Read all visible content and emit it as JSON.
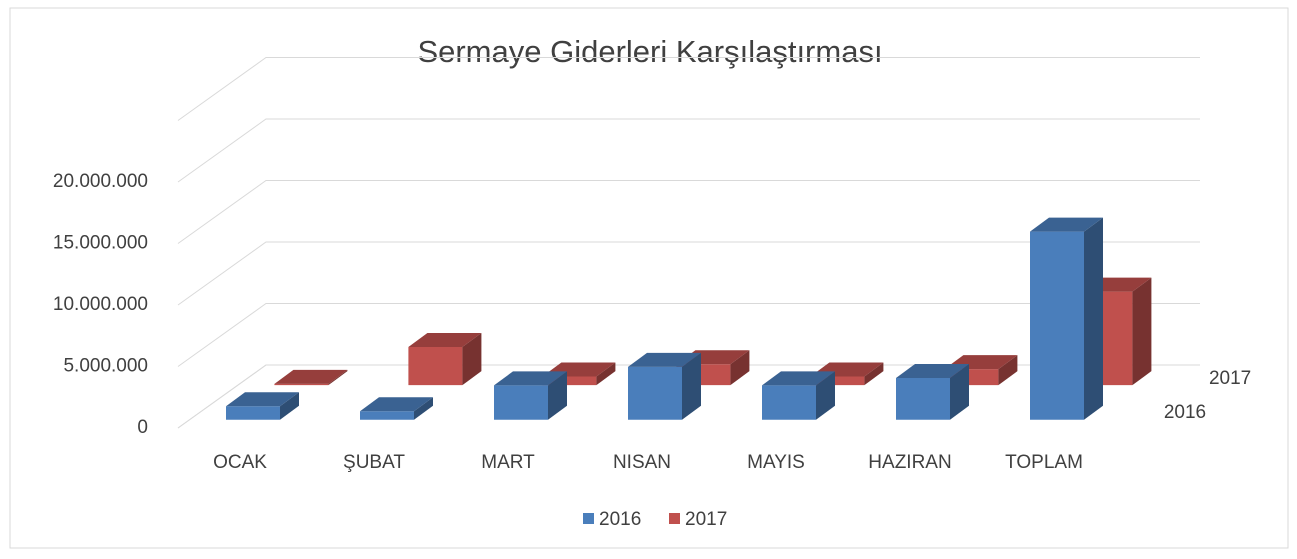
{
  "chart_data": {
    "type": "bar3d",
    "title": "Sermaye Giderleri Karşılaştırması",
    "categories": [
      "OCAK",
      "ŞUBAT",
      "MART",
      "NISAN",
      "MAYIS",
      "HAZIRAN",
      "TOPLAM"
    ],
    "series": [
      {
        "name": "2016",
        "color": "#4a7ebb",
        "values": [
          1100000,
          700000,
          2800000,
          4300000,
          2800000,
          3400000,
          15300000
        ]
      },
      {
        "name": "2017",
        "color": "#c0504d",
        "values": [
          100000,
          3100000,
          700000,
          1700000,
          700000,
          1300000,
          7600000
        ]
      }
    ],
    "ylim": [
      0,
      25000000
    ],
    "yticks": [
      {
        "value": 0,
        "label": "0"
      },
      {
        "value": 5000000,
        "label": "5.000.000"
      },
      {
        "value": 10000000,
        "label": "10.000.000"
      },
      {
        "value": 15000000,
        "label": "15.000.000"
      },
      {
        "value": 20000000,
        "label": "20.000.000"
      }
    ],
    "grid": true,
    "legend": "bottom"
  }
}
